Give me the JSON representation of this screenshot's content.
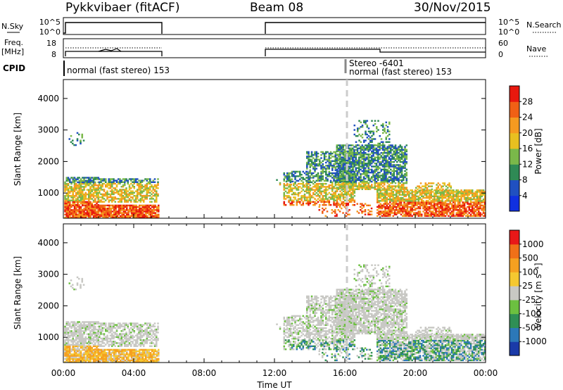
{
  "header": {
    "station": "Pykkvibaer (fitACF)",
    "beam": "Beam 08",
    "date": "30/Nov/2015"
  },
  "strips": {
    "nsky": {
      "left_label": "N.Sky",
      "left_ticks": [
        "10^5",
        "10^0"
      ],
      "right_label": "N.Search",
      "right_ticks": [
        "10^5",
        "10^0"
      ]
    },
    "freq": {
      "left_label_1": "Freq.",
      "left_label_2": "[MHz]",
      "left_ticks": [
        "18",
        "8"
      ],
      "right_label": "Nave",
      "right_ticks": [
        "60",
        "0"
      ]
    },
    "cpid": {
      "label": "CPID",
      "seg1": "normal (fast stereo) 153",
      "seg2_line1": "Stereo -6401",
      "seg2_line2": "normal (fast stereo) 153"
    }
  },
  "chart_data": [
    {
      "type": "heatmap",
      "name": "Power",
      "ylabel": "Slant Range [km]",
      "yticks": [
        "1000",
        "2000",
        "3000",
        "4000"
      ],
      "ylim": [
        200,
        4600
      ],
      "colorbar": {
        "label": "Power [dB]",
        "ticks": [
          "4",
          "8",
          "12",
          "16",
          "20",
          "24",
          "28"
        ],
        "colors": [
          "#1030e0",
          "#2050c0",
          "#2f8a55",
          "#7ab84a",
          "#e8c020",
          "#f59a20",
          "#f06015",
          "#e8180e"
        ]
      }
    },
    {
      "type": "heatmap",
      "name": "Velocity",
      "ylabel": "Slant Range [km]",
      "yticks": [
        "1000",
        "2000",
        "3000",
        "4000"
      ],
      "ylim": [
        200,
        4600
      ],
      "colorbar": {
        "label": "Velocity [m s⁻¹]",
        "ticks": [
          "1000",
          "500",
          "100",
          "25",
          "-25",
          "-100",
          "-500",
          "-1000"
        ],
        "colors": [
          "#1a3aa8",
          "#2c78b8",
          "#2f8f55",
          "#6cc040",
          "#c8c8c4",
          "#f5c830",
          "#f5a020",
          "#f07018",
          "#e81818"
        ]
      }
    }
  ],
  "xaxis": {
    "label": "Time UT",
    "ticks": [
      "00:00",
      "04:00",
      "08:00",
      "12:00",
      "16:00",
      "20:00",
      "00:00"
    ]
  }
}
